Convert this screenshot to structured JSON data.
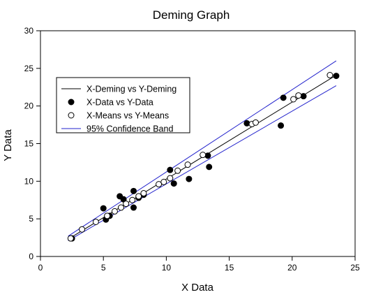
{
  "chart_data": {
    "type": "scatter",
    "title": "Deming Graph",
    "xlabel": "X Data",
    "ylabel": "Y Data",
    "xlim": [
      0,
      25
    ],
    "ylim": [
      0,
      30
    ],
    "xticks": [
      0,
      5,
      10,
      15,
      20,
      25
    ],
    "yticks": [
      0,
      5,
      10,
      15,
      20,
      25,
      30
    ],
    "grid": false,
    "legend_position": "upper-left",
    "series": [
      {
        "name": "X-Deming vs Y-Deming",
        "kind": "line",
        "color": "#000000",
        "points": [
          [
            2.3,
            2.4
          ],
          [
            23.5,
            24.1
          ]
        ]
      },
      {
        "name": "X-Data vs Y-Data",
        "kind": "scatter-filled",
        "color": "#000000",
        "points": [
          [
            2.5,
            2.4
          ],
          [
            5.0,
            6.4
          ],
          [
            5.2,
            4.9
          ],
          [
            5.5,
            5.4
          ],
          [
            6.3,
            8.0
          ],
          [
            6.6,
            7.6
          ],
          [
            7.4,
            8.7
          ],
          [
            7.4,
            6.5
          ],
          [
            7.8,
            7.8
          ],
          [
            8.2,
            8.2
          ],
          [
            10.3,
            11.5
          ],
          [
            10.6,
            9.7
          ],
          [
            11.8,
            10.3
          ],
          [
            13.3,
            13.4
          ],
          [
            13.4,
            11.9
          ],
          [
            16.4,
            17.7
          ],
          [
            19.1,
            17.4
          ],
          [
            19.3,
            21.1
          ],
          [
            20.9,
            21.3
          ],
          [
            23.5,
            24.0
          ]
        ]
      },
      {
        "name": "X-Means vs Y-Means",
        "kind": "scatter-open",
        "color": "#000000",
        "points": [
          [
            2.4,
            2.4
          ],
          [
            3.3,
            3.6
          ],
          [
            4.4,
            4.6
          ],
          [
            5.3,
            5.4
          ],
          [
            5.9,
            6.0
          ],
          [
            6.4,
            6.5
          ],
          [
            6.8,
            7.0
          ],
          [
            7.3,
            7.5
          ],
          [
            7.8,
            8.0
          ],
          [
            8.2,
            8.4
          ],
          [
            9.4,
            9.6
          ],
          [
            9.8,
            9.9
          ],
          [
            10.3,
            10.4
          ],
          [
            10.9,
            11.4
          ],
          [
            11.7,
            12.2
          ],
          [
            12.9,
            13.5
          ],
          [
            16.8,
            17.6
          ],
          [
            17.1,
            17.8
          ],
          [
            20.1,
            20.9
          ],
          [
            20.5,
            21.4
          ],
          [
            23.0,
            24.1
          ]
        ]
      },
      {
        "name": "95% Confidence Band",
        "kind": "band",
        "color": "#2222cc",
        "upper": [
          [
            2.2,
            2.7
          ],
          [
            23.5,
            26.0
          ]
        ],
        "lower": [
          [
            2.2,
            2.1
          ],
          [
            23.5,
            22.7
          ]
        ]
      }
    ]
  }
}
